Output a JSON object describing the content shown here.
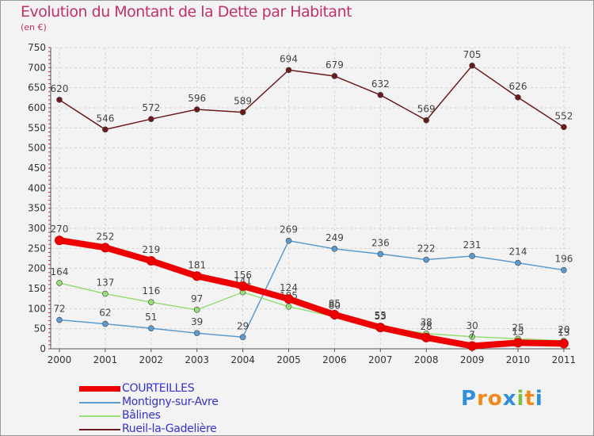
{
  "chart_data": {
    "type": "line",
    "title": "Evolution du Montant de la Dette par Habitant",
    "unit_label": "(en €)",
    "xlabel": "",
    "ylabel": "",
    "x": [
      "2000",
      "2001",
      "2002",
      "2003",
      "2004",
      "2005",
      "2006",
      "2007",
      "2008",
      "2009",
      "2010",
      "2011"
    ],
    "ylim": [
      0,
      750
    ],
    "yticks": [
      0,
      50,
      100,
      150,
      200,
      250,
      300,
      350,
      400,
      450,
      500,
      550,
      600,
      650,
      700,
      750
    ],
    "grid": true,
    "legend_position": "bottom-left",
    "series": [
      {
        "name": "Rueil-la-Gadelière",
        "color": "#6b1b1b",
        "values": [
          620,
          546,
          572,
          596,
          589,
          694,
          679,
          632,
          569,
          705,
          626,
          552
        ],
        "labels": [
          "620",
          "546",
          "572",
          "596",
          "589",
          "694",
          "679",
          "632",
          "569",
          "705",
          "626",
          "552"
        ]
      },
      {
        "name": "Montigny-sur-Avre",
        "color": "#5b9bd0",
        "values": [
          72,
          62,
          51,
          39,
          29,
          269,
          249,
          236,
          222,
          231,
          214,
          196
        ],
        "labels": [
          "72",
          "62",
          "51",
          "39",
          "29",
          "269",
          "249",
          "236",
          "222",
          "231",
          "214",
          "196"
        ]
      },
      {
        "name": "Bâlines",
        "color": "#99dd77",
        "values": [
          164,
          137,
          116,
          97,
          141,
          105,
          80,
          55,
          38,
          30,
          25,
          20
        ],
        "labels": [
          "164",
          "137",
          "116",
          "97",
          "141",
          "105",
          "80",
          "55",
          "38",
          "30",
          "25",
          "20"
        ]
      },
      {
        "name": "COURTEILLES",
        "color": "#ee0000",
        "values": [
          270,
          252,
          219,
          181,
          156,
          124,
          85,
          53,
          28,
          7,
          15,
          13
        ],
        "labels": [
          "270",
          "252",
          "219",
          "181",
          "156",
          "124",
          "85",
          "53",
          "28",
          "7",
          "15",
          "13"
        ]
      }
    ]
  },
  "legend": {
    "items": [
      {
        "label": "COURTEILLES",
        "color": "#ee0000"
      },
      {
        "label": "Montigny-sur-Avre",
        "color": "#5b9bd0"
      },
      {
        "label": "Bâlines",
        "color": "#99dd77"
      },
      {
        "label": "Rueil-la-Gadelière",
        "color": "#6b1b1b"
      }
    ]
  },
  "logo": {
    "letters": [
      "P",
      "r",
      "o",
      "x",
      "i",
      "t",
      "i"
    ],
    "colors": [
      "#2f8fd8",
      "#f08a1c",
      "#f08a1c",
      "#2f8fd8",
      "#7cc242",
      "#f08a1c",
      "#2f8fd8"
    ]
  }
}
